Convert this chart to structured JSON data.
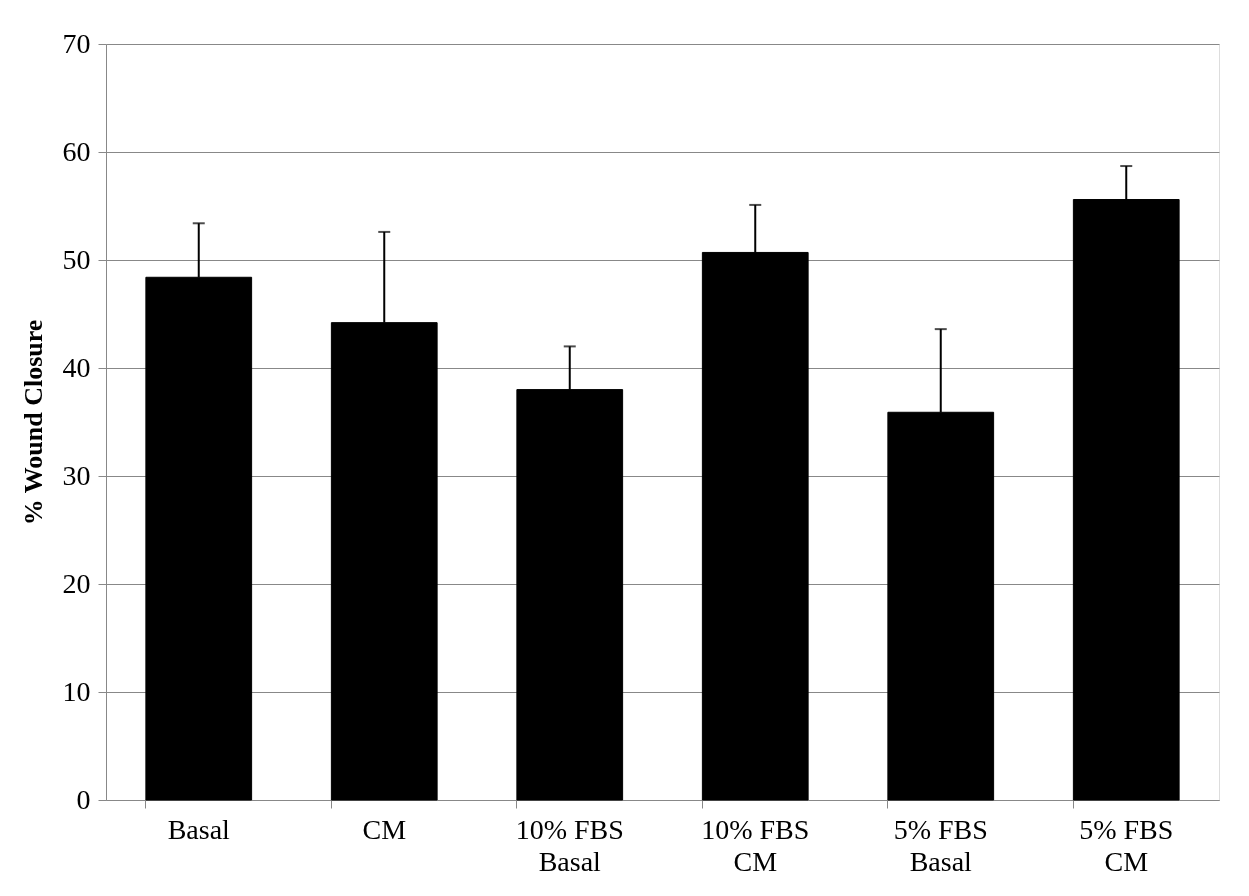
{
  "chart_data": {
    "type": "bar",
    "ylabel": "% Wound Closure",
    "categories": [
      "Basal",
      "CM",
      "10% FBS Basal",
      "10% FBS CM",
      "5% FBS Basal",
      "5% FBS CM"
    ],
    "values": [
      48.4,
      44.2,
      38.0,
      50.7,
      35.9,
      55.6
    ],
    "errors": [
      [
        48.4,
        53.4
      ],
      [
        44.2,
        52.6
      ],
      [
        38.0,
        42.0
      ],
      [
        50.7,
        55.1
      ],
      [
        35.9,
        43.6
      ],
      [
        55.6,
        58.7
      ]
    ],
    "color": "#000000",
    "ylim": [
      0,
      70
    ],
    "yticks": [
      0,
      10,
      20,
      30,
      40,
      50,
      60,
      70
    ],
    "grid": "y"
  }
}
